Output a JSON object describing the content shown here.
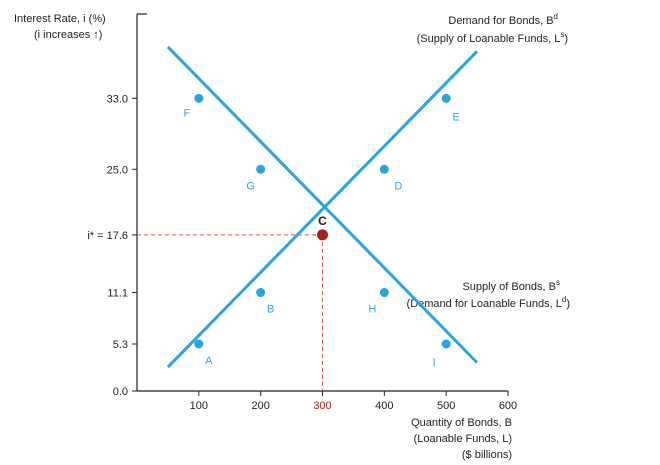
{
  "chart_data": {
    "type": "line",
    "ylabel_line1": "Interest Rate, i (%)",
    "ylabel_line2": "(i increases ↑)",
    "xlabel_line1": "Quantity of Bonds, B",
    "xlabel_line2": "(Loanable Funds, L)",
    "xlabel_line3": "($ billions)",
    "xlim": [
      0,
      600
    ],
    "ylim": [
      0,
      38
    ],
    "x_ticks": [
      "100",
      "200",
      "300",
      "400",
      "500",
      "600"
    ],
    "y_ticks": [
      "0.0",
      "5.3",
      "11.1",
      "25.0",
      "33.0"
    ],
    "equilibrium": {
      "x": 300,
      "y": 17.6,
      "label": "C",
      "y_label": "i* = 17.6",
      "x_label": "300"
    },
    "series": [
      {
        "name": "Demand for Bonds, B^d (Supply of Loanable Funds, L^s)",
        "legend_line1": "Demand for Bonds, B",
        "legend_line1_sup": "d",
        "legend_line2": "(Supply of Loanable Funds, L",
        "legend_line2_sup": "s",
        "legend_line2_end": ")",
        "color": "#2aa4de",
        "line": [
          [
            50,
            38.8
          ],
          [
            550,
            3.2
          ]
        ],
        "points": [
          {
            "label": "F",
            "x": 100,
            "y": 33.0
          },
          {
            "label": "G",
            "x": 200,
            "y": 25.0
          },
          {
            "label": "H",
            "x": 400,
            "y": 11.1
          },
          {
            "label": "I",
            "x": 500,
            "y": 5.3
          }
        ]
      },
      {
        "name": "Supply of Bonds, B^s (Demand for Loanable Funds, L^d)",
        "legend_line1": "Supply of Bonds, B",
        "legend_line1_sup": "s",
        "legend_line2": "(Demand for Loanable Funds, L",
        "legend_line2_sup": "d",
        "legend_line2_end": ")",
        "color": "#2aa4de",
        "line": [
          [
            50,
            2.7
          ],
          [
            550,
            38.3
          ]
        ],
        "points": [
          {
            "label": "A",
            "x": 100,
            "y": 5.3
          },
          {
            "label": "B",
            "x": 200,
            "y": 11.1
          },
          {
            "label": "D",
            "x": 400,
            "y": 25.0
          },
          {
            "label": "E",
            "x": 500,
            "y": 33.0
          }
        ]
      }
    ],
    "colors": {
      "curve": "#2aa4de",
      "equilibrium": "#a32020",
      "guide": "#d9534f",
      "axis": "#222222",
      "label_blue": "#2aa4de"
    }
  }
}
